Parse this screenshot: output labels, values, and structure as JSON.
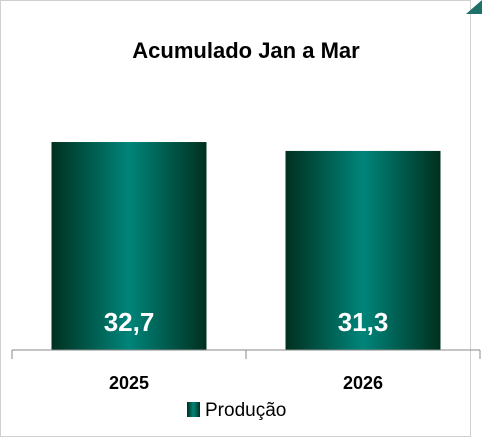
{
  "chart_data": {
    "type": "bar",
    "title": "Acumulado Jan a Mar",
    "categories": [
      "2025",
      "2026"
    ],
    "series": [
      {
        "name": "Produção",
        "color": "#00857a",
        "values": [
          32.7,
          31.3
        ],
        "value_labels": [
          "32,7",
          "31,3"
        ]
      }
    ],
    "legend": "bottom"
  }
}
